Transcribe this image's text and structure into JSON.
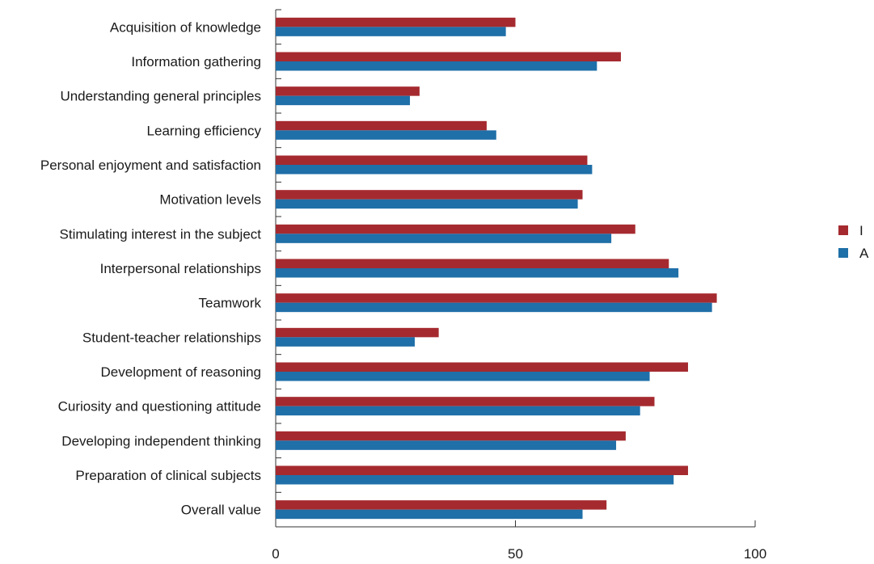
{
  "chart_data": {
    "type": "bar",
    "orientation": "horizontal",
    "categories": [
      "Acquisition of knowledge",
      "Information gathering",
      "Understanding general principles",
      "Learning efficiency",
      "Personal enjoyment and satisfaction",
      "Motivation levels",
      "Stimulating interest in the subject",
      "Interpersonal relationships",
      "Teamwork",
      "Student-teacher relationships",
      "Development of reasoning",
      "Curiosity and questioning attitude",
      "Developing independent thinking",
      "Preparation of clinical subjects",
      "Overall value"
    ],
    "series": [
      {
        "name": "I",
        "color": "#a52a2f",
        "values": [
          50,
          72,
          30,
          44,
          65,
          64,
          75,
          82,
          92,
          34,
          86,
          79,
          73,
          86,
          69
        ]
      },
      {
        "name": "A",
        "color": "#1f6fa8",
        "values": [
          48,
          67,
          28,
          46,
          66,
          63,
          70,
          84,
          91,
          29,
          78,
          76,
          71,
          83,
          64
        ]
      }
    ],
    "xlim": [
      0,
      100
    ],
    "xticks": [
      0,
      50,
      100
    ],
    "title": "",
    "xlabel": "",
    "ylabel": "",
    "grid": false,
    "legend_position": "right"
  }
}
